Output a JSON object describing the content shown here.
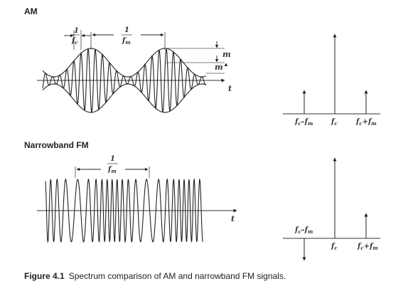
{
  "am": {
    "title": "AM",
    "period_carrier": {
      "num": "1",
      "den": "f",
      "sub": "c"
    },
    "period_mod": {
      "num": "1",
      "den": "f",
      "sub": "m"
    },
    "depth_label_top": "m",
    "depth_label_bot": "m",
    "time_label": "t",
    "spectrum_labels": [
      {
        "main": "f",
        "sub1": "c",
        "op": "–",
        "b": "f",
        "sub2": "m"
      },
      {
        "main": "f",
        "sub1": "c",
        "op": "",
        "b": "",
        "sub2": ""
      },
      {
        "main": "f",
        "sub1": "c",
        "op": "+",
        "b": "f",
        "sub2": "m"
      }
    ]
  },
  "fm": {
    "title": "Narrowband FM",
    "period_mod": {
      "num": "1",
      "den": "f",
      "sub": "m"
    },
    "time_label": "t",
    "spectrum_labels": [
      {
        "main": "f",
        "sub1": "c",
        "op": "–",
        "b": "f",
        "sub2": "m"
      },
      {
        "main": "f",
        "sub1": "c",
        "op": "",
        "b": "",
        "sub2": ""
      },
      {
        "main": "f",
        "sub1": "c",
        "op": "+",
        "b": "f",
        "sub2": "m"
      }
    ]
  },
  "caption": {
    "label": "Figure 4.1",
    "text": "Spectrum comparison of AM and narrowband FM signals."
  }
}
